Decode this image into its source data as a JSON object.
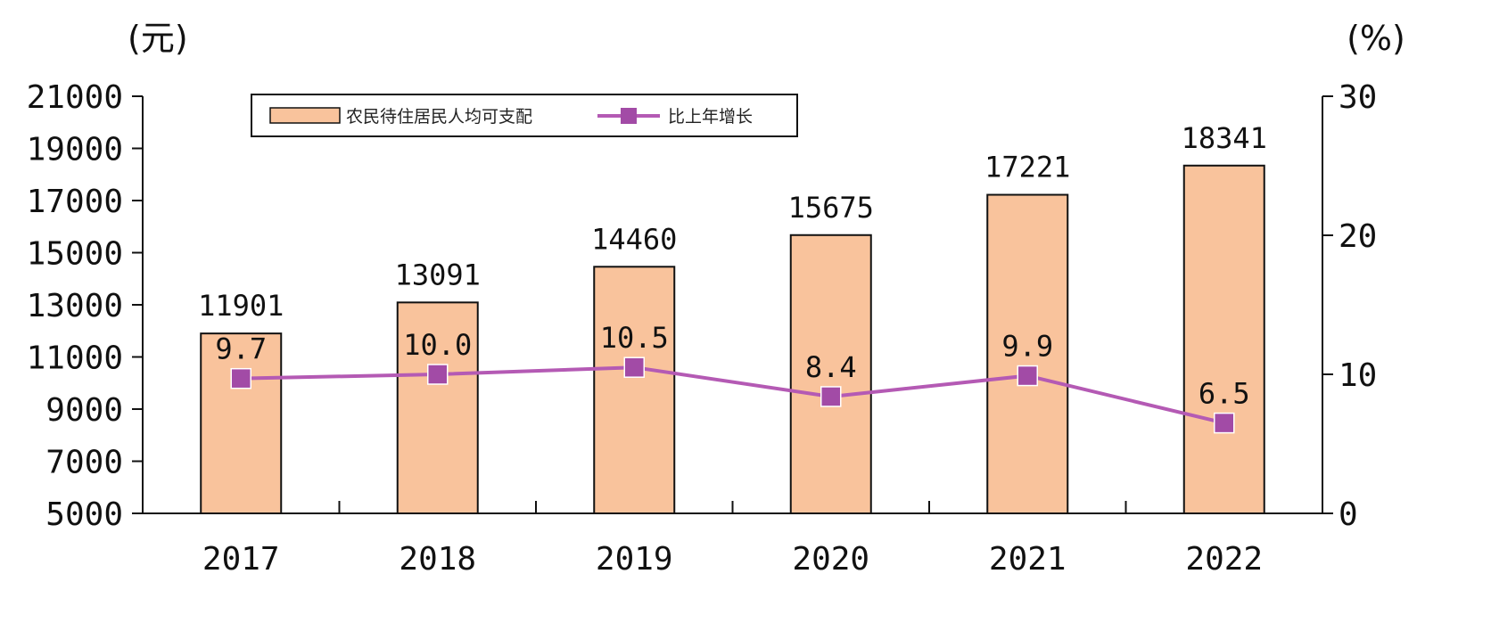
{
  "chart_data": {
    "type": "bar+line",
    "categories": [
      "2017",
      "2018",
      "2019",
      "2020",
      "2021",
      "2022"
    ],
    "series": [
      {
        "name": "农民待住居民人均可支配",
        "type": "bar",
        "axis": "left",
        "values": [
          11901,
          13091,
          14460,
          15675,
          17221,
          18341
        ],
        "labels": [
          "11901",
          "13091",
          "14460",
          "15675",
          "17221",
          "18341"
        ]
      },
      {
        "name": "比上年增长",
        "type": "line",
        "axis": "right",
        "values": [
          9.7,
          10.0,
          10.5,
          8.4,
          9.9,
          6.5
        ],
        "labels": [
          "9.7",
          "10.0",
          "10.5",
          "8.4",
          "9.9",
          "6.5"
        ]
      }
    ],
    "y_left": {
      "unit": "(元)",
      "range": [
        5000,
        21000
      ],
      "ticks": [
        5000,
        7000,
        9000,
        11000,
        13000,
        15000,
        17000,
        19000,
        21000
      ]
    },
    "y_right": {
      "unit": "(%)",
      "range": [
        0,
        30
      ],
      "ticks": [
        0,
        10,
        20,
        30
      ]
    },
    "legend": {
      "placement": "top-left"
    },
    "grid": false,
    "colors": {
      "bar_fill": "#f9c39c",
      "bar_stroke": "#111111",
      "line": "#b45ab4",
      "marker": "#a24ba6",
      "axis": "#111111"
    }
  }
}
